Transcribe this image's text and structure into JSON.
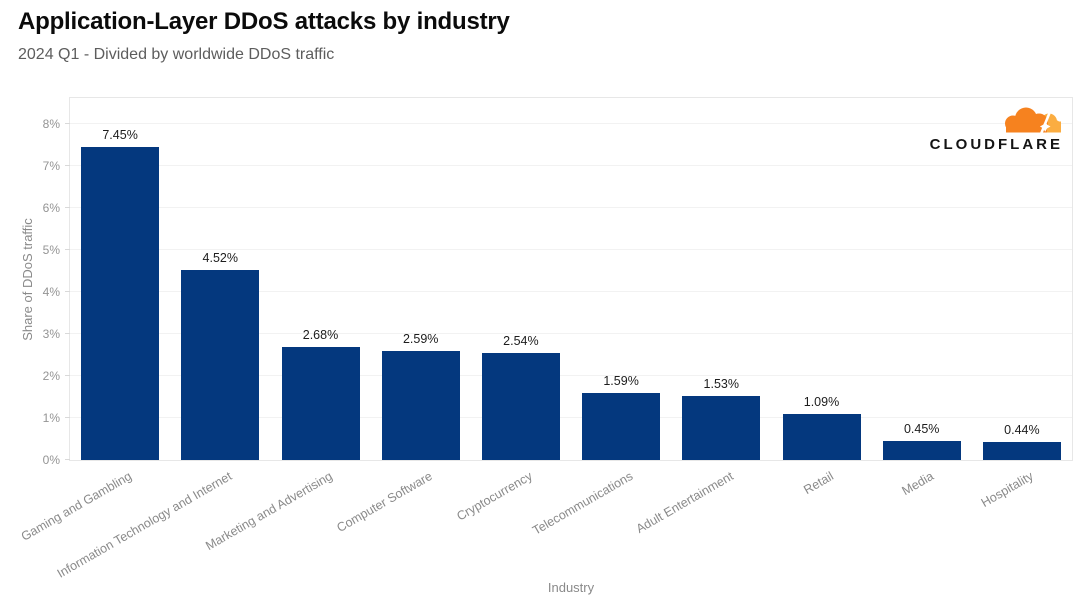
{
  "header": {
    "title": "Application-Layer DDoS attacks by industry",
    "subtitle": "2024 Q1 - Divided by worldwide DDoS traffic"
  },
  "branding": {
    "logo_text": "CLOUDFLARE",
    "cloud_orange_dark": "#F6821F",
    "cloud_orange_light": "#FBAD41"
  },
  "chart_data": {
    "type": "bar",
    "title": "Application-Layer DDoS attacks by industry",
    "subtitle": "2024 Q1 - Divided by worldwide DDoS traffic",
    "categories": [
      "Gaming and Gambling",
      "Information Technology and Internet",
      "Marketing and Advertising",
      "Computer Software",
      "Cryptocurrency",
      "Telecommunications",
      "Adult Entertainment",
      "Retail",
      "Media",
      "Hospitality"
    ],
    "values": [
      7.45,
      4.52,
      2.68,
      2.59,
      2.54,
      1.59,
      1.53,
      1.09,
      0.45,
      0.44
    ],
    "value_labels": [
      "7.45%",
      "4.52%",
      "2.68%",
      "2.59%",
      "2.54%",
      "1.59%",
      "1.53%",
      "1.09%",
      "0.45%",
      "0.44%"
    ],
    "xlabel": "Industry",
    "ylabel": "Share of DDoS traffic",
    "ylim": [
      0,
      8.62
    ],
    "yticks": [
      0,
      1,
      2,
      3,
      4,
      5,
      6,
      7,
      8
    ],
    "ytick_labels": [
      "0%",
      "1%",
      "2%",
      "3%",
      "4%",
      "5%",
      "6%",
      "7%",
      "8%"
    ],
    "grid": true,
    "legend": "none",
    "bar_color": "#04387E"
  }
}
